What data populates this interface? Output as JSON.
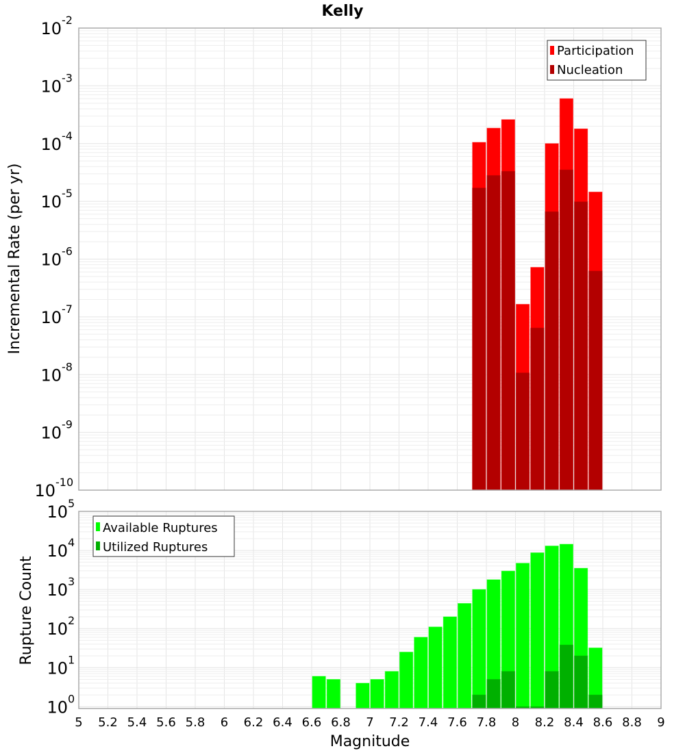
{
  "chart_data": [
    {
      "type": "bar",
      "title": "Kelly",
      "xlabel": "Magnitude",
      "ylabel": "Incremental Rate (per yr)",
      "yscale": "log",
      "ylim": [
        1e-10,
        0.01
      ],
      "xlim": [
        5,
        9
      ],
      "bar_width": 0.1,
      "grid": true,
      "legend_position": "top-right",
      "y_ticks": [
        {
          "base": "10",
          "exp": "-2",
          "value": 0.01
        },
        {
          "base": "10",
          "exp": "-3",
          "value": 0.001
        },
        {
          "base": "10",
          "exp": "-4",
          "value": 0.0001
        },
        {
          "base": "10",
          "exp": "-5",
          "value": 1e-05
        },
        {
          "base": "10",
          "exp": "-6",
          "value": 1e-06
        },
        {
          "base": "10",
          "exp": "-7",
          "value": 1e-07
        },
        {
          "base": "10",
          "exp": "-8",
          "value": 1e-08
        },
        {
          "base": "10",
          "exp": "-9",
          "value": 1e-09
        },
        {
          "base": "10",
          "exp": "-10",
          "value": 1e-10
        }
      ],
      "x": [
        7.75,
        7.85,
        7.95,
        8.05,
        8.15,
        8.25,
        8.35,
        8.45,
        8.55
      ],
      "series": [
        {
          "name": "Participation",
          "color": "#ff0000",
          "values": [
            0.000105,
            0.000185,
            0.00026,
            1.65e-07,
            7.2e-07,
            0.0001,
            0.0006,
            0.00018,
            1.45e-05
          ]
        },
        {
          "name": "Nucleation",
          "color": "#b30000",
          "values": [
            1.7e-05,
            2.8e-05,
            3.3e-05,
            1.07e-08,
            6.4e-08,
            6.6e-06,
            3.5e-05,
            9.8e-06,
            6.2e-07
          ]
        }
      ]
    },
    {
      "type": "bar",
      "title": "",
      "xlabel": "Magnitude",
      "ylabel": "Rupture Count",
      "yscale": "log",
      "ylim": [
        0.9,
        100000.0
      ],
      "xlim": [
        5,
        9
      ],
      "bar_width": 0.1,
      "grid": true,
      "legend_position": "top-left",
      "y_ticks": [
        {
          "base": "10",
          "exp": "5",
          "value": 100000.0
        },
        {
          "base": "10",
          "exp": "4",
          "value": 10000.0
        },
        {
          "base": "10",
          "exp": "3",
          "value": 1000.0
        },
        {
          "base": "10",
          "exp": "2",
          "value": 100.0
        },
        {
          "base": "10",
          "exp": "1",
          "value": 10.0
        },
        {
          "base": "10",
          "exp": "0",
          "value": 1
        }
      ],
      "x_ticks": [
        "5",
        "5.2",
        "5.4",
        "5.6",
        "5.8",
        "6",
        "6.2",
        "6.4",
        "6.6",
        "6.8",
        "7",
        "7.2",
        "7.4",
        "7.6",
        "7.8",
        "8",
        "8.2",
        "8.4",
        "8.6",
        "8.8",
        "9"
      ],
      "x": [
        6.65,
        6.75,
        6.95,
        7.05,
        7.15,
        7.25,
        7.35,
        7.45,
        7.55,
        7.65,
        7.75,
        7.85,
        7.95,
        8.05,
        8.15,
        8.25,
        8.35,
        8.45,
        8.55
      ],
      "series": [
        {
          "name": "Available Ruptures",
          "color": "#00ff00",
          "values": [
            6,
            5,
            4,
            5,
            8,
            25,
            60,
            110,
            200,
            440,
            1000,
            1780,
            2960,
            4700,
            8700,
            13000,
            14400,
            3500,
            32
          ]
        },
        {
          "name": "Utilized Ruptures",
          "color": "#00b000",
          "values": [
            0,
            0,
            0,
            0,
            0,
            0,
            0,
            0,
            0,
            0,
            2,
            5,
            8,
            1,
            1,
            8,
            38,
            20,
            2
          ]
        }
      ]
    }
  ]
}
